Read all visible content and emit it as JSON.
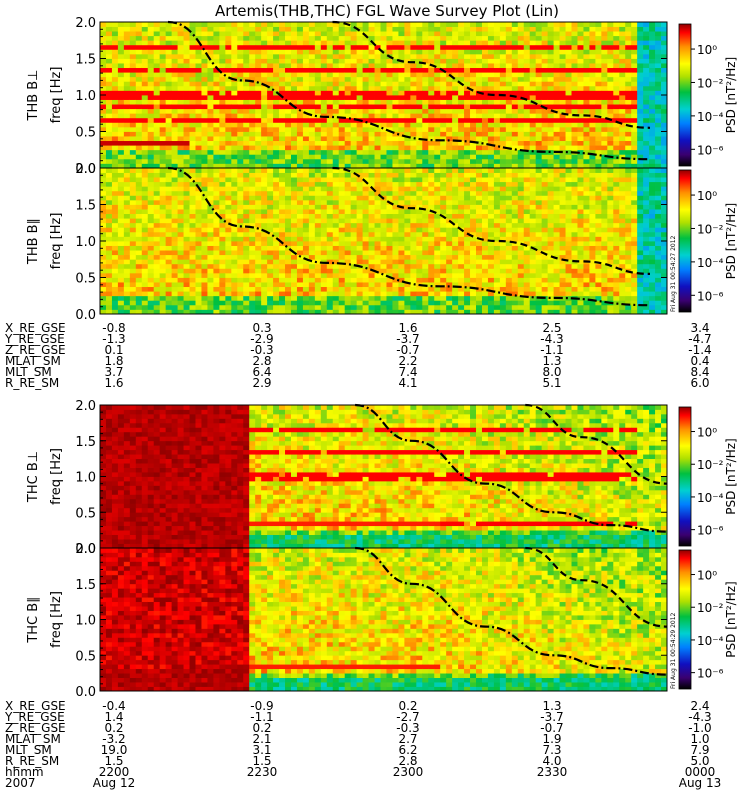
{
  "title": "Artemis(THB,THC) FGL Wave Survey Plot (Lin)",
  "colors": {
    "colormap": [
      "#000000",
      "#3a0070",
      "#1010c0",
      "#0080ff",
      "#00d0d0",
      "#00c040",
      "#b0e000",
      "#ffff00",
      "#ff9000",
      "#ff0000",
      "#900000"
    ],
    "saturated": "#a00000",
    "gyro_lines": "#000000"
  },
  "chart_data": [
    {
      "type": "heatmap",
      "panel": "THB B⊥",
      "ylabel_probe": "THB B⊥",
      "ylabel_axis": "freq [Hz]",
      "ylim": [
        0,
        2.0
      ],
      "yticks": [
        "0.0",
        "0.5",
        "1.0",
        "1.5",
        "2.0"
      ],
      "colorbar_label": "PSD [nT²/Hz]",
      "colorbar_ticks": [
        "10⁰",
        "10⁻²",
        "10⁻⁴",
        "10⁻⁶"
      ],
      "colorbar_range_log10": [
        -7,
        1.5
      ],
      "timestamp": "",
      "overlays": [
        {
          "style": "dash-dot",
          "points": [
            [
              0.12,
              2.0
            ],
            [
              0.25,
              1.2
            ],
            [
              0.4,
              0.7
            ],
            [
              0.6,
              0.38
            ],
            [
              0.8,
              0.22
            ],
            [
              0.97,
              0.12
            ]
          ]
        },
        {
          "style": "dashed",
          "points": [
            [
              0.41,
              2.0
            ],
            [
              0.55,
              1.45
            ],
            [
              0.7,
              1.0
            ],
            [
              0.85,
              0.72
            ],
            [
              0.97,
              0.55
            ]
          ]
        }
      ]
    },
    {
      "type": "heatmap",
      "panel": "THB B∥",
      "ylabel_probe": "THB B∥",
      "ylabel_axis": "freq [Hz]",
      "ylim": [
        0,
        2.0
      ],
      "yticks": [
        "0.0",
        "0.5",
        "1.0",
        "1.5",
        "2.0"
      ],
      "colorbar_label": "PSD [nT²/Hz]",
      "colorbar_ticks": [
        "10⁰",
        "10⁻²",
        "10⁻⁴",
        "10⁻⁶"
      ],
      "colorbar_range_log10": [
        -7,
        1.5
      ],
      "timestamp": "Fri Aug 31 00:54:27 2012",
      "overlays": [
        {
          "style": "dash-dot",
          "points": [
            [
              0.12,
              2.0
            ],
            [
              0.25,
              1.2
            ],
            [
              0.4,
              0.7
            ],
            [
              0.6,
              0.38
            ],
            [
              0.8,
              0.22
            ],
            [
              0.97,
              0.12
            ]
          ]
        },
        {
          "style": "dashed",
          "points": [
            [
              0.41,
              2.0
            ],
            [
              0.55,
              1.45
            ],
            [
              0.7,
              1.0
            ],
            [
              0.85,
              0.72
            ],
            [
              0.97,
              0.55
            ]
          ]
        }
      ]
    },
    {
      "type": "heatmap",
      "panel": "THC B⊥",
      "ylabel_probe": "THC B⊥",
      "ylabel_axis": "freq [Hz]",
      "ylim": [
        0,
        2.0
      ],
      "yticks": [
        "0.0",
        "0.5",
        "1.0",
        "1.5",
        "2.0"
      ],
      "colorbar_label": "PSD [nT²/Hz]",
      "colorbar_ticks": [
        "10⁰",
        "10⁻²",
        "10⁻⁴",
        "10⁻⁶"
      ],
      "colorbar_range_log10": [
        -7,
        1.5
      ],
      "timestamp": "",
      "saturated_until": 0.26,
      "overlays": [
        {
          "style": "dash-dot",
          "points": [
            [
              0.45,
              2.0
            ],
            [
              0.55,
              1.5
            ],
            [
              0.68,
              0.9
            ],
            [
              0.8,
              0.5
            ],
            [
              0.9,
              0.32
            ],
            [
              1.0,
              0.23
            ]
          ]
        },
        {
          "style": "dashed",
          "points": [
            [
              0.75,
              2.0
            ],
            [
              0.85,
              1.55
            ],
            [
              1.0,
              0.9
            ]
          ]
        }
      ]
    },
    {
      "type": "heatmap",
      "panel": "THC B∥",
      "ylabel_probe": "THC B∥",
      "ylabel_axis": "freq [Hz]",
      "ylim": [
        0,
        2.0
      ],
      "yticks": [
        "0.0",
        "0.5",
        "1.0",
        "1.5",
        "2.0"
      ],
      "colorbar_label": "PSD [nT²/Hz]",
      "colorbar_ticks": [
        "10⁰",
        "10⁻²",
        "10⁻⁴",
        "10⁻⁶"
      ],
      "colorbar_range_log10": [
        -7,
        1.5
      ],
      "timestamp": "Fri Aug 31 00:54:29 2012",
      "saturated_until": 0.26,
      "overlays": [
        {
          "style": "dash-dot",
          "points": [
            [
              0.45,
              2.0
            ],
            [
              0.55,
              1.5
            ],
            [
              0.68,
              0.9
            ],
            [
              0.8,
              0.5
            ],
            [
              0.9,
              0.32
            ],
            [
              1.0,
              0.23
            ]
          ]
        },
        {
          "style": "dashed",
          "points": [
            [
              0.75,
              2.0
            ],
            [
              0.85,
              1.55
            ],
            [
              1.0,
              0.9
            ]
          ]
        }
      ]
    }
  ],
  "ephemeris_top": {
    "labels": [
      "X_RE_GSE",
      "Y_RE_GSE",
      "Z_RE_GSE",
      "MLAT_SM",
      "MLT_SM",
      "R_RE_SM"
    ],
    "columns": [
      [
        "-0.8",
        "-1.3",
        "0.1",
        "1.8",
        "3.7",
        "1.6"
      ],
      [
        "0.3",
        "-2.9",
        "-0.3",
        "2.8",
        "6.4",
        "2.9"
      ],
      [
        "1.6",
        "-3.7",
        "-0.7",
        "2.2",
        "7.4",
        "4.1"
      ],
      [
        "2.5",
        "-4.3",
        "-1.1",
        "1.3",
        "8.0",
        "5.1"
      ],
      [
        "3.4",
        "-4.7",
        "-1.4",
        "0.4",
        "8.4",
        "6.0"
      ]
    ]
  },
  "ephemeris_bottom": {
    "labels": [
      "X_RE_GSE",
      "Y_RE_GSE",
      "Z_RE_GSE",
      "MLAT_SM",
      "MLT_SM",
      "R_RE_SM",
      "hhmm",
      "2007"
    ],
    "columns": [
      [
        "-0.4",
        "1.4",
        "0.2",
        "-3.2",
        "19.0",
        "1.5",
        "2200",
        "Aug 12"
      ],
      [
        "-0.9",
        "-1.1",
        "0.2",
        "2.1",
        "3.1",
        "1.5",
        "2230",
        ""
      ],
      [
        "0.2",
        "-2.7",
        "-0.3",
        "2.7",
        "6.2",
        "2.8",
        "2300",
        ""
      ],
      [
        "1.3",
        "-3.7",
        "-0.7",
        "1.9",
        "7.3",
        "4.0",
        "2330",
        ""
      ],
      [
        "2.4",
        "-4.3",
        "-1.0",
        "1.0",
        "7.9",
        "5.0",
        "0000",
        "Aug 13"
      ]
    ]
  }
}
